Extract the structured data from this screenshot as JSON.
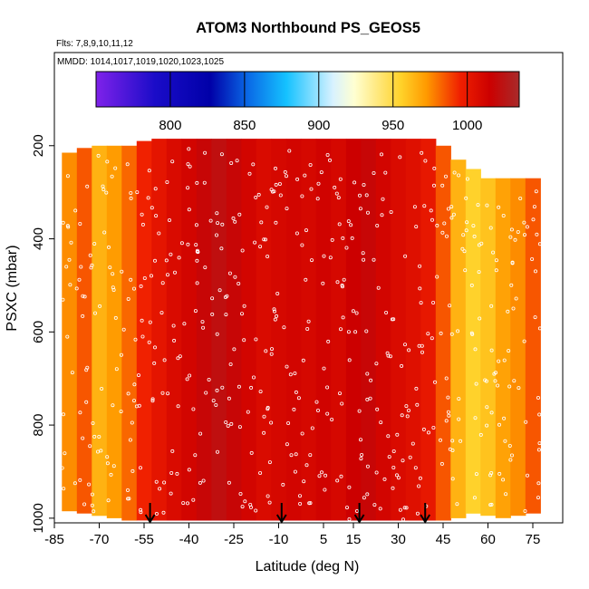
{
  "chart_data": {
    "type": "heatmap",
    "title": "ATOM3 Northbound PS_GEOS5",
    "annotations": [
      "Flts: 7,8,9,10,11,12",
      "MMDD: 1014,1017,1019,1020,1023,1025"
    ],
    "xlabel": "Latitude (deg N)",
    "ylabel": "PSXC (mbar)",
    "xlim": [
      -85,
      85
    ],
    "ylim": [
      1010,
      0
    ],
    "x_ticks": [
      -85,
      -70,
      -55,
      -40,
      -25,
      -10,
      5,
      15,
      30,
      45,
      60,
      75
    ],
    "y_ticks": [
      200,
      400,
      600,
      800,
      1000
    ],
    "colorbar": {
      "range": [
        750,
        1035
      ],
      "ticks": [
        800,
        850,
        900,
        950,
        1000
      ]
    },
    "arrows_lat": [
      -53,
      -9,
      17,
      39
    ],
    "profiles": [
      {
        "lat": -80,
        "top": 215,
        "bottom": 985,
        "value": 975
      },
      {
        "lat": -75,
        "top": 205,
        "bottom": 990,
        "value": 985
      },
      {
        "lat": -70,
        "top": 200,
        "bottom": 995,
        "value": 965
      },
      {
        "lat": -65,
        "top": 200,
        "bottom": 1000,
        "value": 972
      },
      {
        "lat": -60,
        "top": 200,
        "bottom": 1005,
        "value": 982
      },
      {
        "lat": -55,
        "top": 190,
        "bottom": 1005,
        "value": 995
      },
      {
        "lat": -50,
        "top": 185,
        "bottom": 1005,
        "value": 1002
      },
      {
        "lat": -45,
        "top": 185,
        "bottom": 1005,
        "value": 1008
      },
      {
        "lat": -40,
        "top": 185,
        "bottom": 1005,
        "value": 1012
      },
      {
        "lat": -35,
        "top": 185,
        "bottom": 1005,
        "value": 1018
      },
      {
        "lat": -30,
        "top": 185,
        "bottom": 1005,
        "value": 1022
      },
      {
        "lat": -25,
        "top": 185,
        "bottom": 1005,
        "value": 1018
      },
      {
        "lat": -20,
        "top": 185,
        "bottom": 1005,
        "value": 1012
      },
      {
        "lat": -15,
        "top": 185,
        "bottom": 1005,
        "value": 1008
      },
      {
        "lat": -10,
        "top": 185,
        "bottom": 1005,
        "value": 1010
      },
      {
        "lat": -5,
        "top": 185,
        "bottom": 1005,
        "value": 1012
      },
      {
        "lat": 0,
        "top": 185,
        "bottom": 1005,
        "value": 1010
      },
      {
        "lat": 5,
        "top": 185,
        "bottom": 1005,
        "value": 1013
      },
      {
        "lat": 10,
        "top": 185,
        "bottom": 1005,
        "value": 1010
      },
      {
        "lat": 15,
        "top": 185,
        "bottom": 1005,
        "value": 1015
      },
      {
        "lat": 20,
        "top": 185,
        "bottom": 1005,
        "value": 1018
      },
      {
        "lat": 25,
        "top": 185,
        "bottom": 1005,
        "value": 1012
      },
      {
        "lat": 30,
        "top": 185,
        "bottom": 1005,
        "value": 1008
      },
      {
        "lat": 35,
        "top": 185,
        "bottom": 1005,
        "value": 1005
      },
      {
        "lat": 40,
        "top": 185,
        "bottom": 1005,
        "value": 1000
      },
      {
        "lat": 45,
        "top": 200,
        "bottom": 1005,
        "value": 985
      },
      {
        "lat": 50,
        "top": 230,
        "bottom": 1000,
        "value": 965
      },
      {
        "lat": 55,
        "top": 250,
        "bottom": 990,
        "value": 955
      },
      {
        "lat": 60,
        "top": 270,
        "bottom": 995,
        "value": 960
      },
      {
        "lat": 65,
        "top": 270,
        "bottom": 1000,
        "value": 970
      },
      {
        "lat": 70,
        "top": 270,
        "bottom": 995,
        "value": 975
      },
      {
        "lat": 75,
        "top": 270,
        "bottom": 990,
        "value": 985
      }
    ]
  }
}
